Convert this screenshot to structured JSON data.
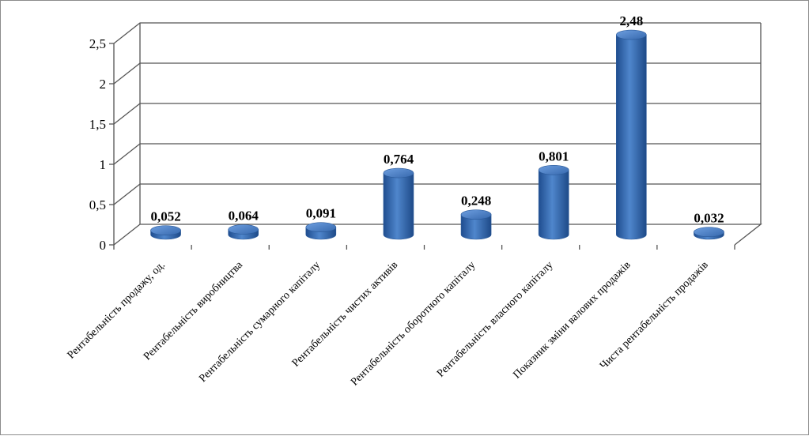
{
  "chart_data": {
    "type": "bar",
    "categories": [
      "Рентабельність продажу, од.",
      "Рентабельність виробництва",
      "Рентабельність сумарного капіталу",
      "Рентабельність чистих активів",
      "Рентабельність оборотного капіталу",
      "Рентабельність власного капіталу",
      "Показник зміни валових продажів",
      "Чиста рентабельність продажів"
    ],
    "values": [
      0.052,
      0.064,
      0.091,
      0.764,
      0.248,
      0.801,
      2.48,
      0.032
    ],
    "data_labels": [
      "0,052",
      "0,064",
      "0,091",
      "0,764",
      "0,248",
      "0,801",
      "2,48",
      "0,032"
    ],
    "y_ticks": [
      "0",
      "0,5",
      "1",
      "1,5",
      "2",
      "2,5"
    ],
    "ylim": [
      0,
      2.5
    ],
    "grid": true,
    "legend": "none",
    "bar_color": "#3a6fb5"
  }
}
